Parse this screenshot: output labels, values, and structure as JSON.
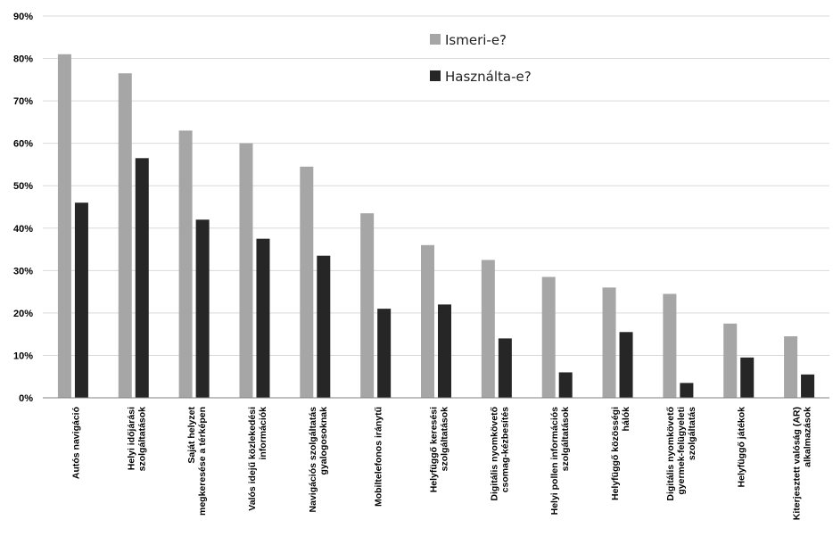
{
  "chart_data": {
    "type": "bar",
    "categories": [
      [
        "Autós navigáció"
      ],
      [
        "Helyi időjárási",
        "szolgáltatások"
      ],
      [
        "Saját helyzet",
        "megkeresése a térképen"
      ],
      [
        "Valós idejű közlekedési",
        "információk"
      ],
      [
        "Navigációs szolgáltatás",
        "gyalogosoknak"
      ],
      [
        "Mobiltelefonos iránytű"
      ],
      [
        "Helyfüggő keresési",
        "szolgáltatások"
      ],
      [
        "Digitális nyomkövető",
        "csomag-kézbesítés"
      ],
      [
        "Helyi pollen információs",
        "szolgáltatások"
      ],
      [
        "Helyfüggő közösségi",
        "hálók"
      ],
      [
        "Digitális nyomkövető",
        "gyermek-felügyeleti",
        "szolgáltatás"
      ],
      [
        "Helyfüggő játékok"
      ],
      [
        "Kiterjesztett valóság (AR)",
        "alkalmazások"
      ]
    ],
    "series": [
      {
        "name": "Ismeri-e?",
        "color": "#a6a6a6",
        "values": [
          81,
          76.5,
          63,
          60,
          54.5,
          43.5,
          36,
          32.5,
          28.5,
          26,
          24.5,
          17.5,
          14.5
        ]
      },
      {
        "name": "Használta-e?",
        "color": "#262626",
        "values": [
          46,
          56.5,
          42,
          37.5,
          33.5,
          21,
          22,
          14,
          6,
          15.5,
          3.5,
          9.5,
          5.5
        ]
      }
    ],
    "ylim": [
      0,
      90
    ],
    "yticks": [
      0,
      10,
      20,
      30,
      40,
      50,
      60,
      70,
      80,
      90
    ],
    "tick_format": "%",
    "grid": true,
    "legend_position": "top-center"
  }
}
